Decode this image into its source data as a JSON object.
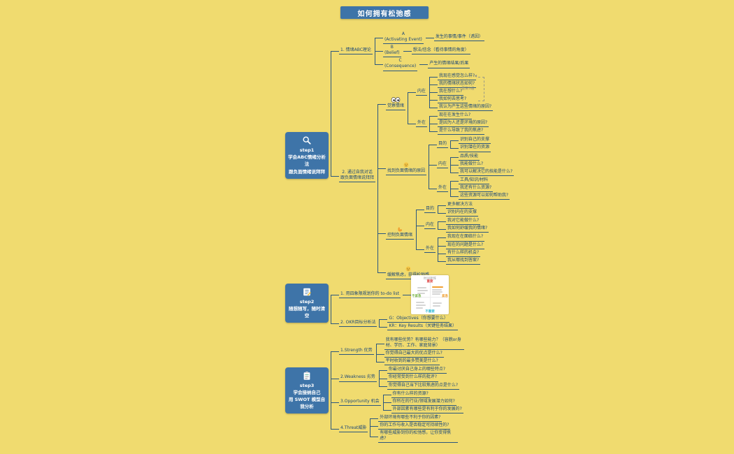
{
  "page": {
    "background": "#F0DB6F",
    "accent": "#3E74A8",
    "line_color": "#2B577F",
    "text_color": "#1C4878"
  },
  "title": "如何拥有松弛感",
  "loop_note": "重复5遍",
  "quadrant": {
    "title": "时间矩阵",
    "axis_top": "重要",
    "axis_right": "紧急",
    "axis_left": "不紧急",
    "axis_bottom": "不重要",
    "colors": {
      "top": "#E05252",
      "right": "#F0A033",
      "left": "#7AB648",
      "bottom": "#3BBCD4"
    }
  },
  "trees": [
    {
      "label": "step1\n学会ABC情绪分析法\n跟负面情绪说拜拜",
      "type": "step",
      "icon": "magnifier-icon",
      "children": [
        {
          "label": "1. 情绪ABC理论",
          "children": [
            {
              "label": "A\n(Activating Event)",
              "center": true,
              "children": [
                {
                  "label": "发生的事情/事件（诱因）"
                }
              ]
            },
            {
              "label": "B\n(Belief)",
              "center": true,
              "children": [
                {
                  "label": "想法/信念（看待事情的角度）"
                }
              ]
            },
            {
              "label": "C\n(Consequence)",
              "center": true,
              "children": [
                {
                  "label": "产生的情绪结果/后果"
                }
              ]
            }
          ]
        },
        {
          "label": "2. 通过自我对话\n跟负面情绪说拜拜",
          "center": true,
          "children": [
            {
              "label": "觉察情绪",
              "sticker": "eyes-icon",
              "children": [
                {
                  "label": "内在",
                  "children": [
                    {
                      "label": "我现在感觉怎么样?",
                      "loop": "start"
                    },
                    {
                      "label": "我的情绪状态如何?"
                    },
                    {
                      "label": "我在想什么?"
                    },
                    {
                      "label": "我如何去思考?",
                      "loop": "end"
                    },
                    {
                      "label": "我认为产生这些情绪的原因?"
                    }
                  ]
                },
                {
                  "label": "外在",
                  "children": [
                    {
                      "label": "现在在发生什么?"
                    },
                    {
                      "label": "是因为人还是环境的原因?"
                    },
                    {
                      "label": "是什么导致了我的焦虑?"
                    }
                  ]
                }
              ]
            },
            {
              "label": "找到负面情绪的原因",
              "sticker": "sad-face-icon",
              "children": [
                {
                  "label": "目的",
                  "children": [
                    {
                      "label": "识别自己的支撑"
                    },
                    {
                      "label": "识别潜在的资源"
                    }
                  ]
                },
                {
                  "label": "内在",
                  "children": [
                    {
                      "label": "品质/技能"
                    },
                    {
                      "label": "我能做什么?"
                    },
                    {
                      "label": "我可以解决它的技能是什么?"
                    }
                  ]
                },
                {
                  "label": "外在",
                  "children": [
                    {
                      "label": "工具/知识/材料"
                    },
                    {
                      "label": "我还有什么资源?"
                    },
                    {
                      "label": "这些资源可以如何帮助我?"
                    }
                  ]
                }
              ]
            },
            {
              "label": "控制负面情绪",
              "sticker": "muscle-icon",
              "children": [
                {
                  "label": "目的",
                  "children": [
                    {
                      "label": "更多解决方法"
                    },
                    {
                      "label": "识别内在的支撑"
                    }
                  ]
                },
                {
                  "label": "内在",
                  "children": [
                    {
                      "label": "我对它能做什么?"
                    },
                    {
                      "label": "我如何舒缓我的情绪?"
                    }
                  ]
                },
                {
                  "label": "外在",
                  "children": [
                    {
                      "label": "我现在在面临什么?"
                    },
                    {
                      "label": "现在的问题是什么?"
                    },
                    {
                      "label": "有什么样的机会?"
                    },
                    {
                      "label": "我从哪找到答案?"
                    }
                  ]
                }
              ]
            },
            {
              "label": "缓解焦虑，获得松弛感",
              "sticker": "smile-face-icon"
            }
          ]
        }
      ]
    },
    {
      "label": "step2\n随想随写，随时清空",
      "type": "step",
      "icon": "memo-icon",
      "children": [
        {
          "label": "1. 用四象限规划你的 to-do list",
          "children": [
            {
              "image": "quadrant"
            }
          ]
        },
        {
          "label": "2. OKR目标分析法",
          "children": [
            {
              "label": "G：Objectives（你想要什么）"
            },
            {
              "label": "KR：Key Results（关键任务结果）"
            }
          ]
        }
      ]
    },
    {
      "label": "step3\n学会接纳自己\n用 SWOT 模型自我分析",
      "type": "step",
      "icon": "clipboard-icon",
      "children": [
        {
          "label": "1.Strength 优势",
          "children": [
            {
              "label": "我有哪些优势？有哪些能力？（容貌or身材、学历、工作、家庭背景）"
            },
            {
              "label": "你觉得自己最大的优点是什么?"
            },
            {
              "label": "平时收到的最多赞美是什么?"
            }
          ]
        },
        {
          "label": "2.Weakness 劣势",
          "children": [
            {
              "label": "你最讨厌自己身上的哪些特点?"
            },
            {
              "label": "你经常受到什么样的批评?"
            },
            {
              "label": "你觉得自己当下比较焦虑的点是什么?"
            }
          ]
        },
        {
          "label": "3.Opportunity 机会",
          "children": [
            {
              "label": "你有什么样的资源?"
            },
            {
              "label": "你所在的行业/领域发展潜力如何?"
            },
            {
              "label": "外部因素有哪些是有利于你的发展的?"
            }
          ]
        },
        {
          "label": "4.Threat威胁",
          "children": [
            {
              "label": "外部环境有哪些不利于你的因素?"
            },
            {
              "label": "你的工作与收入是否稳定可持续性的?"
            },
            {
              "label": "有哪些威胁到你的松弛感，让你变得焦虑?"
            }
          ]
        }
      ]
    }
  ]
}
